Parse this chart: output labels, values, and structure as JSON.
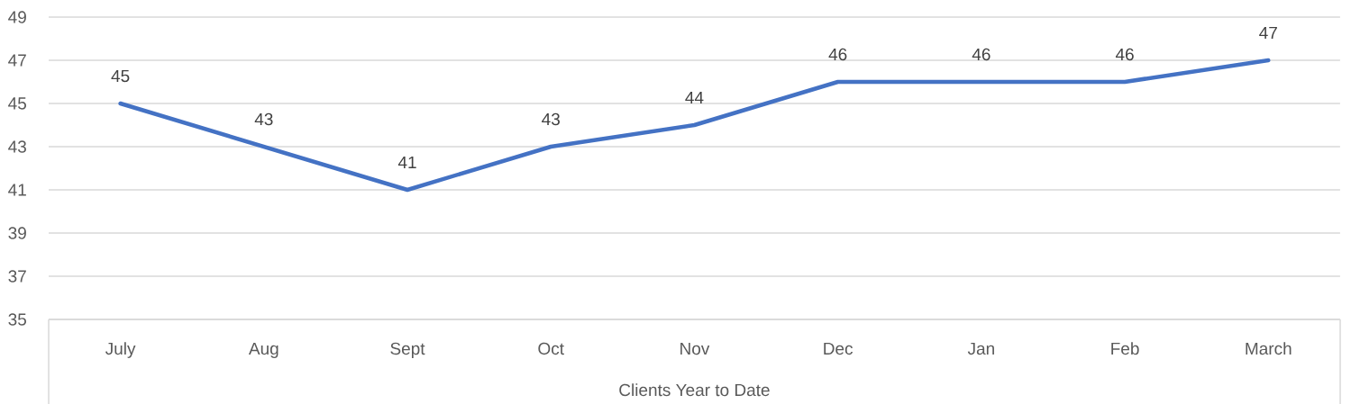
{
  "chart_data": {
    "type": "line",
    "xlabel": "Clients Year to Date",
    "categories": [
      "July",
      "Aug",
      "Sept",
      "Oct",
      "Nov",
      "Dec",
      "Jan",
      "Feb",
      "March"
    ],
    "values": [
      45,
      43,
      41,
      43,
      44,
      46,
      46,
      46,
      47
    ],
    "color": "#4472c4",
    "ylim": [
      35,
      49
    ],
    "yticks": [
      35,
      37,
      39,
      41,
      43,
      45,
      47,
      49
    ],
    "grid": "y",
    "data_labels": true,
    "marker": "none",
    "line_style": "solid"
  }
}
